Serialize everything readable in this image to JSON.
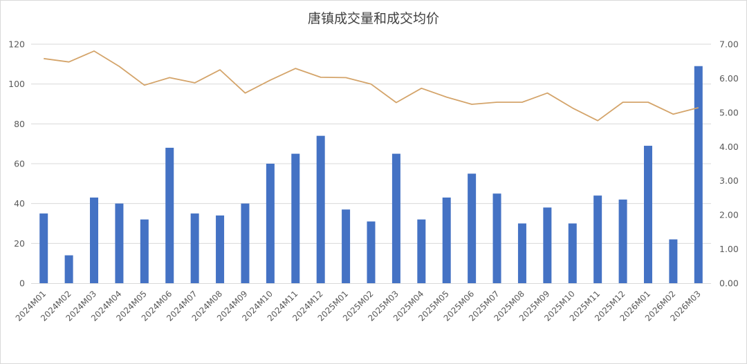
{
  "chart_data": {
    "type": "bar",
    "title": "唐镇成交量和成交均价",
    "categories": [
      "2024M01",
      "2024M02",
      "2024M03",
      "2024M04",
      "2024M05",
      "2024M06",
      "2024M07",
      "2024M08",
      "2024M09",
      "2024M10",
      "2024M11",
      "2024M12",
      "2025M01",
      "2025M02",
      "2025M03",
      "2025M04",
      "2025M05",
      "2025M06",
      "2025M07",
      "2025M08",
      "2025M09",
      "2025M10",
      "2025M11",
      "2025M12",
      "2026M01",
      "2026M02",
      "2026M03"
    ],
    "series": [
      {
        "type": "bar",
        "axis": "left",
        "color": "#4472c4",
        "values": [
          35,
          14,
          43,
          40,
          32,
          68,
          35,
          34,
          40,
          60,
          65,
          74,
          37,
          31,
          65,
          32,
          43,
          55,
          45,
          30,
          38,
          30,
          44,
          42,
          69,
          22,
          109
        ]
      },
      {
        "type": "line",
        "axis": "right",
        "color": "#d4a46a",
        "values": [
          6.58,
          6.48,
          6.8,
          6.35,
          5.8,
          6.02,
          5.87,
          6.25,
          5.57,
          5.95,
          6.29,
          6.03,
          6.02,
          5.83,
          5.29,
          5.71,
          5.45,
          5.24,
          5.3,
          5.3,
          5.57,
          5.13,
          4.76,
          5.3,
          5.3,
          4.95,
          5.14
        ]
      }
    ],
    "left_axis": {
      "ylim": [
        0,
        120
      ],
      "ticks": [
        "0",
        "20",
        "40",
        "60",
        "80",
        "100",
        "120"
      ]
    },
    "right_axis": {
      "ylim": [
        0,
        7
      ],
      "ticks": [
        "0.00",
        "1.00",
        "2.00",
        "3.00",
        "4.00",
        "5.00",
        "6.00",
        "7.00"
      ]
    },
    "grid": true,
    "legend": "none",
    "gridline_color": "#d9d9d9"
  }
}
